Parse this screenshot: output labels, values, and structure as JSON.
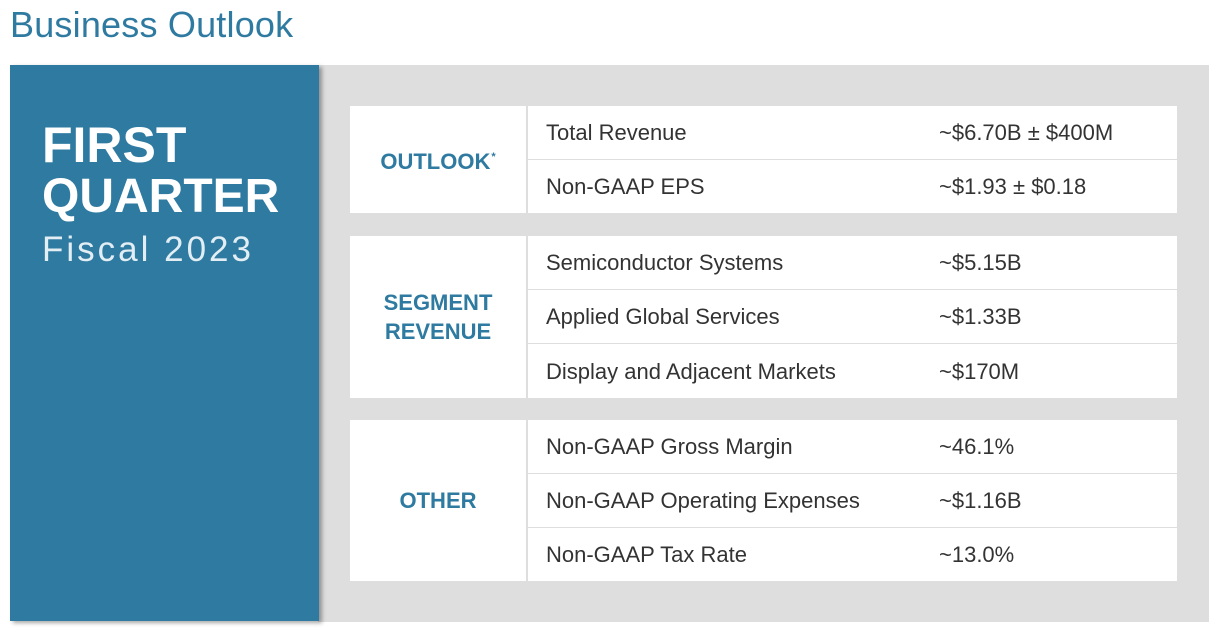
{
  "title": "Business Outlook",
  "period": {
    "line1": "FIRST",
    "line2": "QUARTER",
    "line3": "Fiscal 2023"
  },
  "sections": [
    {
      "category": "OUTLOOK",
      "footnote": "*",
      "rows": [
        {
          "label": "Total Revenue",
          "value": "~$6.70B ± $400M"
        },
        {
          "label": "Non-GAAP EPS",
          "value": "~$1.93 ± $0.18"
        }
      ]
    },
    {
      "category_lines": [
        "SEGMENT",
        "REVENUE"
      ],
      "rows": [
        {
          "label": "Semiconductor Systems",
          "value": "~$5.15B"
        },
        {
          "label": "Applied Global Services",
          "value": "~$1.33B"
        },
        {
          "label": "Display and Adjacent Markets",
          "value": "~$170M"
        }
      ]
    },
    {
      "category": "OTHER",
      "rows": [
        {
          "label": "Non-GAAP Gross Margin",
          "value": "~46.1%"
        },
        {
          "label": "Non-GAAP Operating Expenses",
          "value": "~$1.16B"
        },
        {
          "label": "Non-GAAP Tax Rate",
          "value": "~13.0%"
        }
      ]
    }
  ],
  "colors": {
    "accent_blue": "#2e7aa0",
    "panel_gray": "#dedede",
    "text_dark": "#333333"
  }
}
